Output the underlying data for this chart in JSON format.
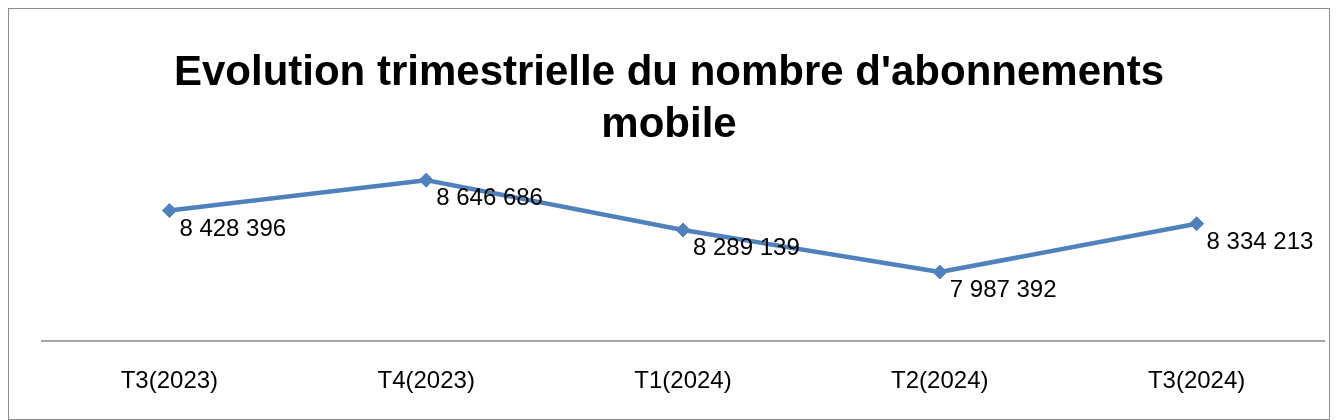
{
  "chart_data": {
    "type": "line",
    "title": "Evolution trimestrielle du nombre d'abonnements mobile",
    "categories": [
      "T3(2023)",
      "T4(2023)",
      "T1(2024)",
      "T2(2024)",
      "T3(2024)"
    ],
    "series": [
      {
        "color": "#4f81bd",
        "values": [
          8428396,
          8646686,
          8289139,
          7987392,
          8334213
        ]
      }
    ],
    "data_labels": true,
    "grid": false,
    "marker": "diamond",
    "line_style": "solid",
    "tick_labels": "x"
  }
}
